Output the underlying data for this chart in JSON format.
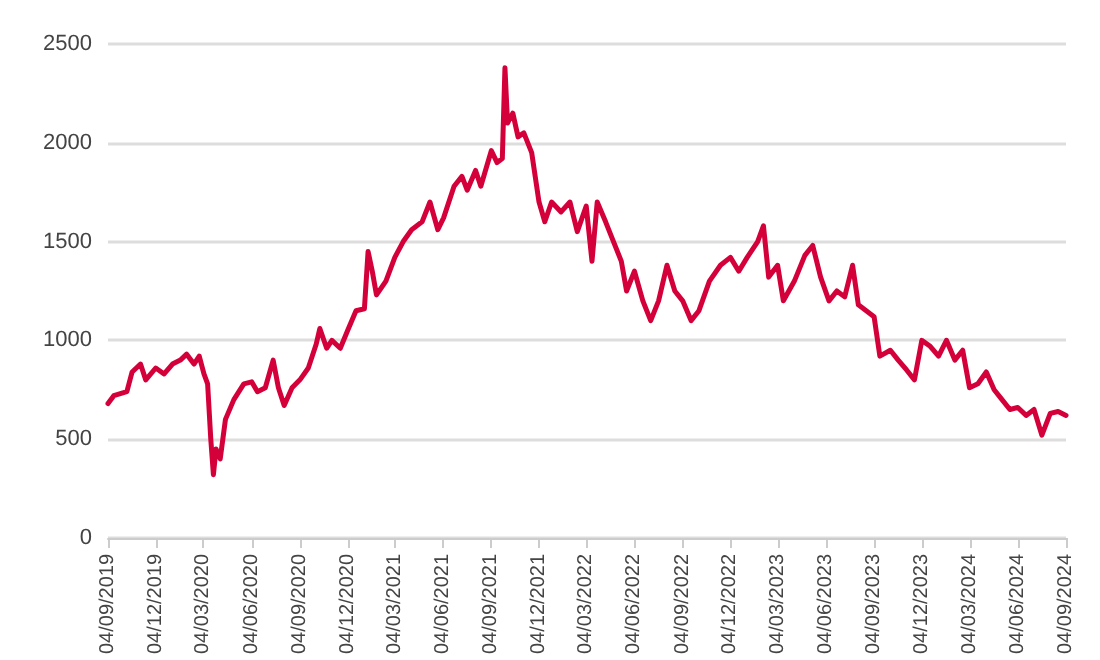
{
  "chart_data": {
    "type": "line",
    "x": [
      "2019-09-04",
      "2019-09-15",
      "2019-10-10",
      "2019-10-20",
      "2019-11-05",
      "2019-11-15",
      "2019-12-04",
      "2019-12-20",
      "2020-01-05",
      "2020-01-20",
      "2020-02-01",
      "2020-02-15",
      "2020-02-25",
      "2020-03-05",
      "2020-03-12",
      "2020-03-18",
      "2020-03-23",
      "2020-03-28",
      "2020-04-05",
      "2020-04-15",
      "2020-05-01",
      "2020-05-20",
      "2020-06-04",
      "2020-06-15",
      "2020-06-30",
      "2020-07-15",
      "2020-07-25",
      "2020-08-05",
      "2020-08-20",
      "2020-09-04",
      "2020-09-20",
      "2020-10-05",
      "2020-10-12",
      "2020-10-25",
      "2020-11-04",
      "2020-11-20",
      "2020-12-04",
      "2020-12-20",
      "2021-01-05",
      "2021-01-12",
      "2021-01-20",
      "2021-01-28",
      "2021-02-15",
      "2021-03-04",
      "2021-03-20",
      "2021-04-05",
      "2021-04-25",
      "2021-05-10",
      "2021-05-25",
      "2021-06-05",
      "2021-06-25",
      "2021-07-10",
      "2021-07-20",
      "2021-08-05",
      "2021-08-15",
      "2021-09-04",
      "2021-09-15",
      "2021-09-25",
      "2021-09-30",
      "2021-10-05",
      "2021-10-15",
      "2021-10-25",
      "2021-11-05",
      "2021-11-20",
      "2021-12-04",
      "2021-12-15",
      "2021-12-28",
      "2022-01-15",
      "2022-02-01",
      "2022-02-15",
      "2022-03-04",
      "2022-03-15",
      "2022-03-25",
      "2022-04-10",
      "2022-04-25",
      "2022-05-10",
      "2022-05-20",
      "2022-06-04",
      "2022-06-20",
      "2022-07-05",
      "2022-07-20",
      "2022-08-05",
      "2022-08-20",
      "2022-09-04",
      "2022-09-20",
      "2022-10-05",
      "2022-10-25",
      "2022-11-15",
      "2022-12-04",
      "2022-12-20",
      "2023-01-05",
      "2023-01-25",
      "2023-02-05",
      "2023-02-15",
      "2023-03-04",
      "2023-03-15",
      "2023-04-05",
      "2023-04-25",
      "2023-05-10",
      "2023-05-25",
      "2023-06-10",
      "2023-06-25",
      "2023-07-10",
      "2023-07-25",
      "2023-08-05",
      "2023-08-20",
      "2023-09-04",
      "2023-09-15",
      "2023-10-05",
      "2023-10-20",
      "2023-11-05",
      "2023-11-20",
      "2023-12-04",
      "2023-12-20",
      "2024-01-05",
      "2024-01-20",
      "2024-02-05",
      "2024-02-20",
      "2024-03-04",
      "2024-03-20",
      "2024-04-05",
      "2024-04-20",
      "2024-05-05",
      "2024-05-20",
      "2024-06-04",
      "2024-06-20",
      "2024-07-05",
      "2024-07-20",
      "2024-08-05",
      "2024-08-20",
      "2024-09-04"
    ],
    "series": [
      {
        "color": "#d4003a",
        "values": [
          680,
          720,
          740,
          840,
          880,
          800,
          860,
          830,
          880,
          900,
          930,
          880,
          920,
          830,
          780,
          500,
          320,
          450,
          400,
          600,
          700,
          780,
          790,
          740,
          760,
          900,
          760,
          670,
          760,
          800,
          860,
          980,
          1060,
          960,
          1000,
          960,
          1050,
          1150,
          1160,
          1450,
          1350,
          1230,
          1300,
          1420,
          1500,
          1560,
          1600,
          1700,
          1560,
          1620,
          1780,
          1830,
          1760,
          1860,
          1780,
          1960,
          1900,
          1920,
          2380,
          2100,
          2150,
          2030,
          2050,
          1950,
          1700,
          1600,
          1700,
          1650,
          1700,
          1550,
          1680,
          1400,
          1700,
          1600,
          1500,
          1400,
          1250,
          1350,
          1200,
          1100,
          1200,
          1380,
          1250,
          1200,
          1100,
          1150,
          1300,
          1380,
          1420,
          1350,
          1420,
          1500,
          1580,
          1320,
          1380,
          1200,
          1300,
          1430,
          1480,
          1320,
          1200,
          1250,
          1220,
          1380,
          1180,
          1150,
          1120,
          920,
          950,
          900,
          850,
          800,
          1000,
          970,
          920,
          1000,
          900,
          950,
          760,
          780,
          840,
          750,
          700,
          650,
          660,
          620,
          650,
          520,
          630,
          640,
          620
        ]
      }
    ],
    "ylim": [
      0,
      2500
    ],
    "yticks": [
      0,
      500,
      1000,
      1500,
      2000,
      2500
    ],
    "xlim": [
      "2019-09-04",
      "2024-09-04"
    ],
    "xticks": [
      {
        "value": "2019-09-04",
        "label": "04/09/2019"
      },
      {
        "value": "2019-12-04",
        "label": "04/12/2019"
      },
      {
        "value": "2020-03-04",
        "label": "04/03/2020"
      },
      {
        "value": "2020-06-04",
        "label": "04/06/2020"
      },
      {
        "value": "2020-09-04",
        "label": "04/09/2020"
      },
      {
        "value": "2020-12-04",
        "label": "04/12/2020"
      },
      {
        "value": "2021-03-04",
        "label": "04/03/2021"
      },
      {
        "value": "2021-06-04",
        "label": "04/06/2021"
      },
      {
        "value": "2021-09-04",
        "label": "04/09/2021"
      },
      {
        "value": "2021-12-04",
        "label": "04/12/2021"
      },
      {
        "value": "2022-03-04",
        "label": "04/03/2022"
      },
      {
        "value": "2022-06-04",
        "label": "04/06/2022"
      },
      {
        "value": "2022-09-04",
        "label": "04/09/2022"
      },
      {
        "value": "2022-12-04",
        "label": "04/12/2022"
      },
      {
        "value": "2023-03-04",
        "label": "04/03/2023"
      },
      {
        "value": "2023-06-04",
        "label": "04/06/2023"
      },
      {
        "value": "2023-09-04",
        "label": "04/09/2023"
      },
      {
        "value": "2023-12-04",
        "label": "04/12/2023"
      },
      {
        "value": "2024-03-04",
        "label": "04/03/2024"
      },
      {
        "value": "2024-06-04",
        "label": "04/06/2024"
      },
      {
        "value": "2024-09-04",
        "label": "04/09/2024"
      }
    ],
    "grid": "y",
    "marker": "none",
    "line_style": "solid"
  }
}
